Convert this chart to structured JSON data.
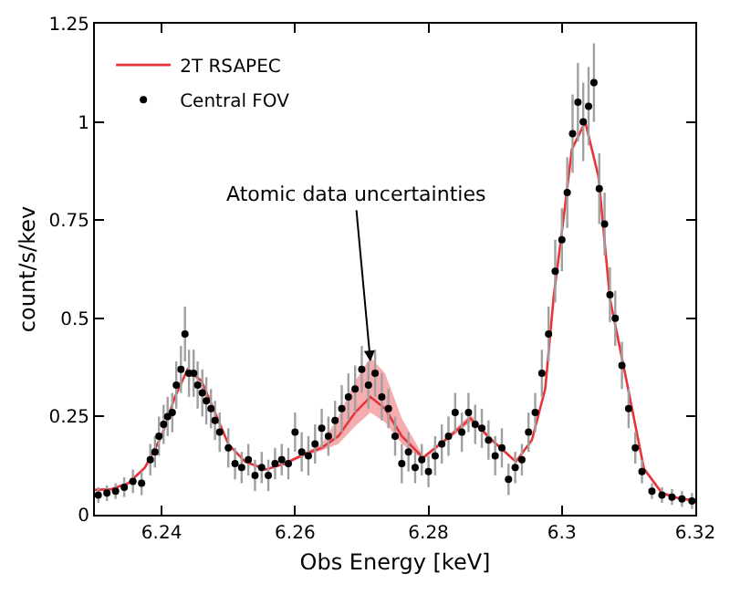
{
  "chart_data": {
    "type": "line",
    "xlabel": "Obs Energy [keV]",
    "ylabel": "count/s/kev",
    "xlim": [
      6.23,
      6.32
    ],
    "xticks": [
      6.24,
      6.26,
      6.28,
      6.3,
      6.32
    ],
    "ylim": [
      0,
      1.25
    ],
    "yticks": [
      0,
      0.25,
      0.5,
      0.75,
      1,
      1.25
    ],
    "legend": "top left",
    "annotations": [
      {
        "text": "Atomic data uncertainties",
        "x": 6.2713,
        "y": 0.39
      }
    ],
    "series": [
      {
        "name": "2T RSAPEC",
        "color": "#e8333a",
        "marker": "none",
        "line_style": "solid",
        "x": [
          6.23,
          6.2325,
          6.235,
          6.2375,
          6.24,
          6.242,
          6.2439,
          6.246,
          6.248,
          6.25,
          6.2525,
          6.2556,
          6.2585,
          6.2615,
          6.264,
          6.2665,
          6.269,
          6.2713,
          6.2735,
          6.276,
          6.2792,
          6.2825,
          6.2863,
          6.2895,
          6.2931,
          6.2955,
          6.2975,
          6.2988,
          6.3,
          6.3015,
          6.3035,
          6.3055,
          6.3072,
          6.3097,
          6.3123,
          6.315,
          6.3175,
          6.32
        ],
        "values": [
          0.063,
          0.065,
          0.08,
          0.12,
          0.2,
          0.3,
          0.37,
          0.34,
          0.26,
          0.18,
          0.135,
          0.115,
          0.13,
          0.155,
          0.17,
          0.2,
          0.26,
          0.3,
          0.27,
          0.2,
          0.145,
          0.19,
          0.245,
          0.19,
          0.135,
          0.19,
          0.32,
          0.56,
          0.72,
          0.93,
          1.0,
          0.86,
          0.55,
          0.34,
          0.117,
          0.055,
          0.042,
          0.036
        ],
        "lower": [
          0.06,
          0.062,
          0.077,
          0.117,
          0.197,
          0.297,
          0.366,
          0.337,
          0.257,
          0.177,
          0.132,
          0.112,
          0.127,
          0.15,
          0.163,
          0.18,
          0.225,
          0.26,
          0.235,
          0.18,
          0.14,
          0.185,
          0.235,
          0.186,
          0.131,
          0.186,
          0.316,
          0.555,
          0.715,
          0.925,
          0.995,
          0.855,
          0.545,
          0.336,
          0.114,
          0.052,
          0.039,
          0.033
        ],
        "upper": [
          0.066,
          0.068,
          0.083,
          0.123,
          0.203,
          0.303,
          0.374,
          0.343,
          0.263,
          0.183,
          0.138,
          0.118,
          0.133,
          0.16,
          0.18,
          0.25,
          0.34,
          0.4,
          0.36,
          0.245,
          0.15,
          0.195,
          0.255,
          0.194,
          0.139,
          0.194,
          0.324,
          0.565,
          0.725,
          0.935,
          1.005,
          0.865,
          0.555,
          0.344,
          0.12,
          0.058,
          0.045,
          0.039
        ]
      },
      {
        "name": "Central FOV",
        "type": "scatter",
        "color": "#000000",
        "marker": "circle",
        "x": [
          6.2305,
          6.2318,
          6.2331,
          6.2344,
          6.2357,
          6.237,
          6.2383,
          6.239,
          6.2396,
          6.2403,
          6.2409,
          6.2416,
          6.2422,
          6.2429,
          6.2435,
          6.2441,
          6.2448,
          6.2454,
          6.2461,
          6.2467,
          6.2474,
          6.248,
          6.2487,
          6.25,
          6.251,
          6.252,
          6.253,
          6.254,
          6.255,
          6.256,
          6.257,
          6.258,
          6.259,
          6.26,
          6.261,
          6.262,
          6.263,
          6.264,
          6.265,
          6.266,
          6.267,
          6.268,
          6.269,
          6.27,
          6.271,
          6.272,
          6.273,
          6.274,
          6.275,
          6.276,
          6.277,
          6.278,
          6.279,
          6.28,
          6.281,
          6.282,
          6.283,
          6.284,
          6.285,
          6.286,
          6.287,
          6.288,
          6.289,
          6.29,
          6.291,
          6.292,
          6.293,
          6.294,
          6.295,
          6.296,
          6.297,
          6.298,
          6.299,
          6.3,
          6.3008,
          6.3016,
          6.3024,
          6.3032,
          6.304,
          6.3048,
          6.3056,
          6.3064,
          6.3072,
          6.308,
          6.309,
          6.31,
          6.311,
          6.312,
          6.3135,
          6.315,
          6.3165,
          6.318,
          6.3195
        ],
        "values": [
          0.05,
          0.055,
          0.06,
          0.07,
          0.085,
          0.08,
          0.14,
          0.16,
          0.2,
          0.23,
          0.25,
          0.26,
          0.33,
          0.37,
          0.46,
          0.36,
          0.36,
          0.33,
          0.31,
          0.29,
          0.27,
          0.24,
          0.21,
          0.17,
          0.13,
          0.12,
          0.14,
          0.1,
          0.12,
          0.1,
          0.13,
          0.14,
          0.13,
          0.21,
          0.16,
          0.15,
          0.18,
          0.22,
          0.2,
          0.24,
          0.27,
          0.3,
          0.32,
          0.37,
          0.33,
          0.36,
          0.3,
          0.27,
          0.2,
          0.13,
          0.16,
          0.12,
          0.14,
          0.11,
          0.15,
          0.18,
          0.2,
          0.26,
          0.21,
          0.26,
          0.23,
          0.22,
          0.19,
          0.15,
          0.17,
          0.09,
          0.12,
          0.14,
          0.21,
          0.26,
          0.36,
          0.46,
          0.62,
          0.7,
          0.82,
          0.97,
          1.05,
          1.0,
          1.04,
          1.1,
          0.83,
          0.74,
          0.56,
          0.5,
          0.38,
          0.27,
          0.17,
          0.11,
          0.06,
          0.05,
          0.045,
          0.04,
          0.035
        ],
        "errors": [
          0.02,
          0.02,
          0.02,
          0.025,
          0.03,
          0.03,
          0.04,
          0.04,
          0.05,
          0.05,
          0.05,
          0.05,
          0.06,
          0.06,
          0.07,
          0.06,
          0.06,
          0.06,
          0.06,
          0.06,
          0.05,
          0.05,
          0.05,
          0.05,
          0.04,
          0.04,
          0.04,
          0.04,
          0.04,
          0.04,
          0.04,
          0.04,
          0.04,
          0.05,
          0.05,
          0.05,
          0.05,
          0.05,
          0.05,
          0.05,
          0.06,
          0.06,
          0.06,
          0.06,
          0.06,
          0.06,
          0.06,
          0.05,
          0.05,
          0.05,
          0.05,
          0.04,
          0.04,
          0.04,
          0.05,
          0.05,
          0.05,
          0.05,
          0.05,
          0.05,
          0.05,
          0.05,
          0.05,
          0.05,
          0.05,
          0.04,
          0.04,
          0.04,
          0.05,
          0.05,
          0.06,
          0.07,
          0.08,
          0.08,
          0.09,
          0.1,
          0.1,
          0.1,
          0.1,
          0.1,
          0.09,
          0.08,
          0.07,
          0.07,
          0.06,
          0.05,
          0.04,
          0.03,
          0.02,
          0.02,
          0.02,
          0.02,
          0.02
        ]
      }
    ]
  }
}
